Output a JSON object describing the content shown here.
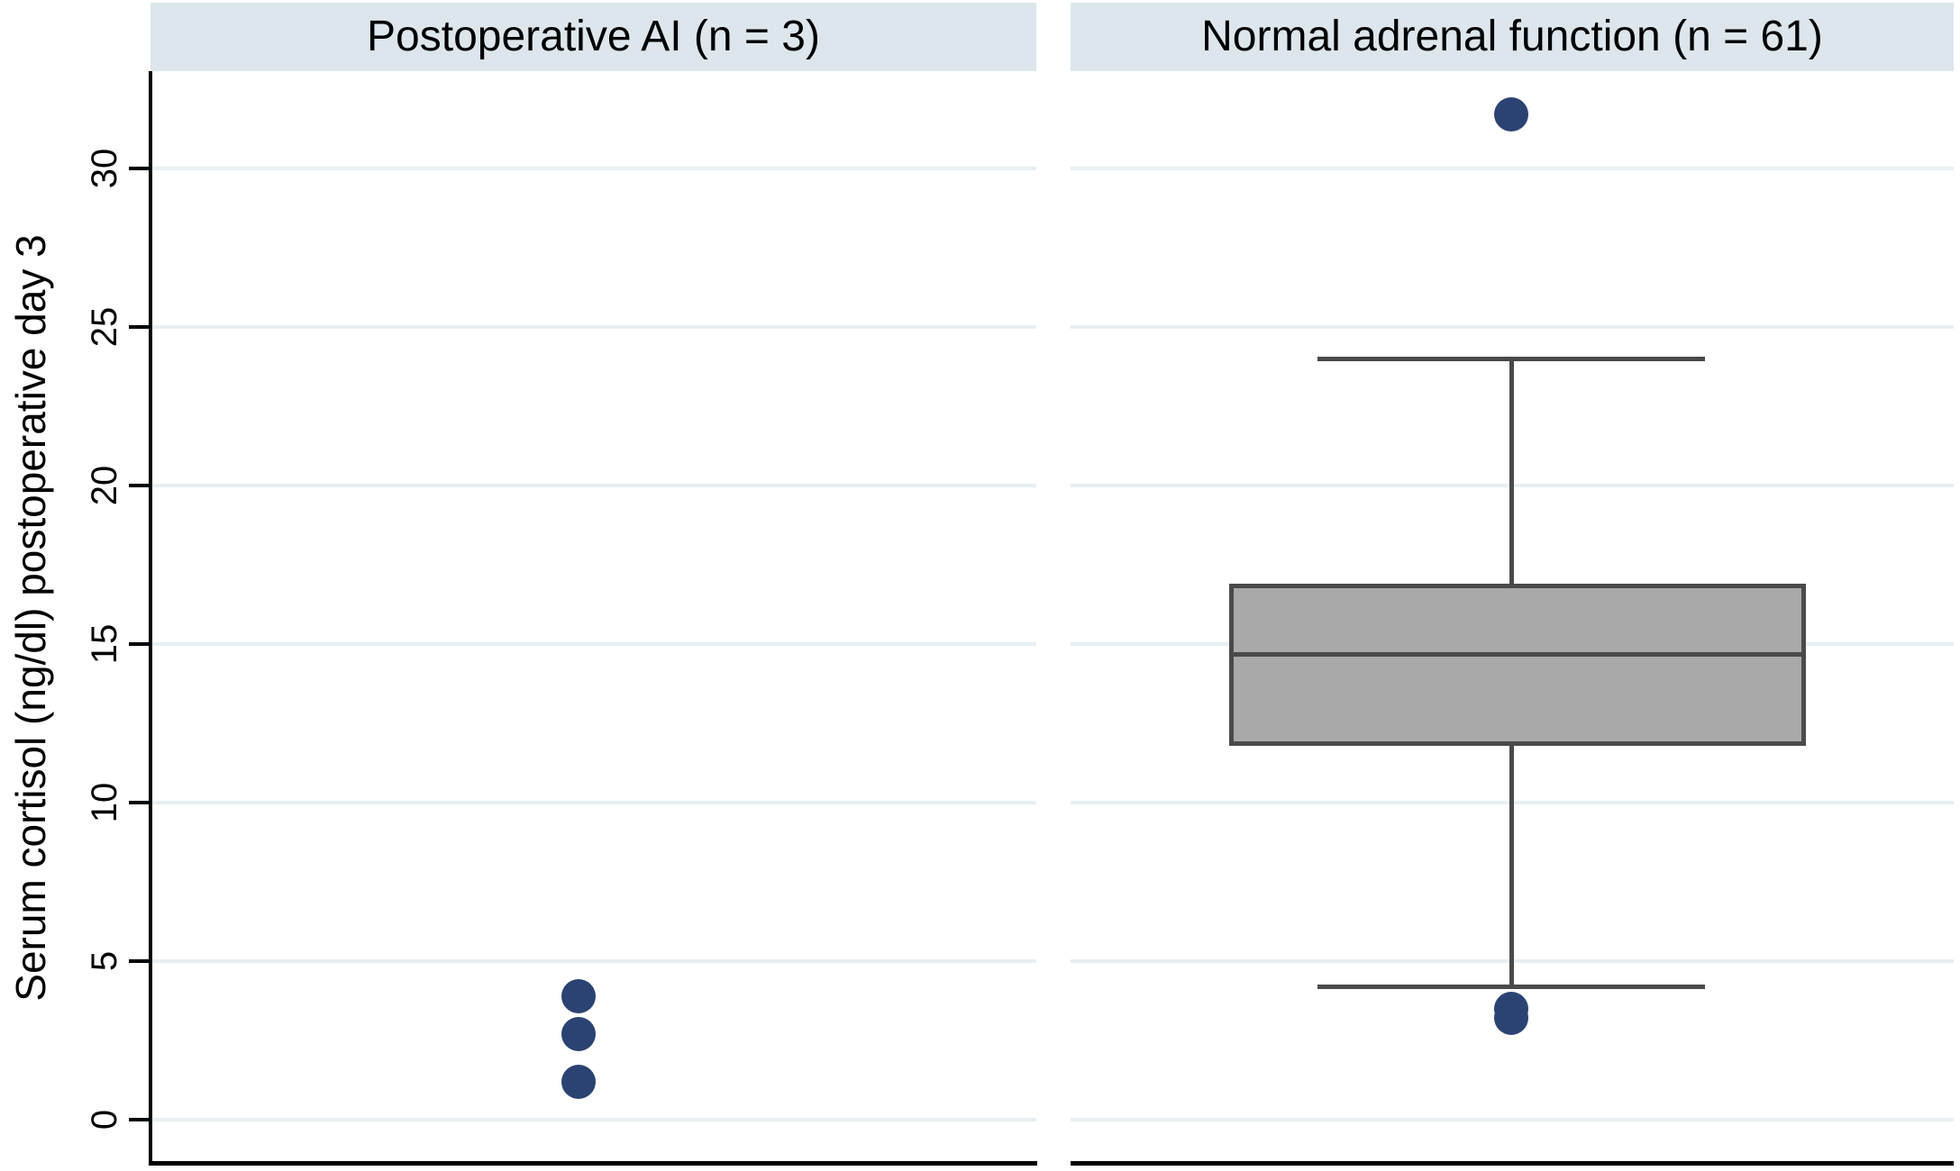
{
  "chart_data": {
    "type": "box",
    "title": "",
    "ylabel": "Serum cortisol (ng/dl) postoperative day 3",
    "yticks": [
      "0",
      "5",
      "10",
      "15",
      "20",
      "25",
      "30"
    ],
    "ylim": [
      -1.5,
      33
    ],
    "grid": "horizontal",
    "legend": "none",
    "panels": [
      {
        "title": "Postoperative AI (n = 3)",
        "group": "Postoperative AI",
        "n": 3,
        "style": "points",
        "points": [
          3.9,
          2.7,
          1.2
        ]
      },
      {
        "title": "Normal adrenal function (n = 61)",
        "group": "Normal adrenal function",
        "n": 61,
        "style": "box",
        "box": {
          "q1": 11.8,
          "median": 14.7,
          "q3": 16.9,
          "whisker_low": 4.2,
          "whisker_high": 24
        },
        "outliers": [
          31.7,
          3.5,
          3.2
        ]
      }
    ],
    "colors": {
      "marker": "#2b4372",
      "box_fill": "#a9a9a9",
      "box_stroke": "#4a4a4a",
      "header_band": "#dce6ec",
      "gridline": "#e7eff2",
      "axis": "#000000",
      "background": "#ffffff"
    }
  }
}
